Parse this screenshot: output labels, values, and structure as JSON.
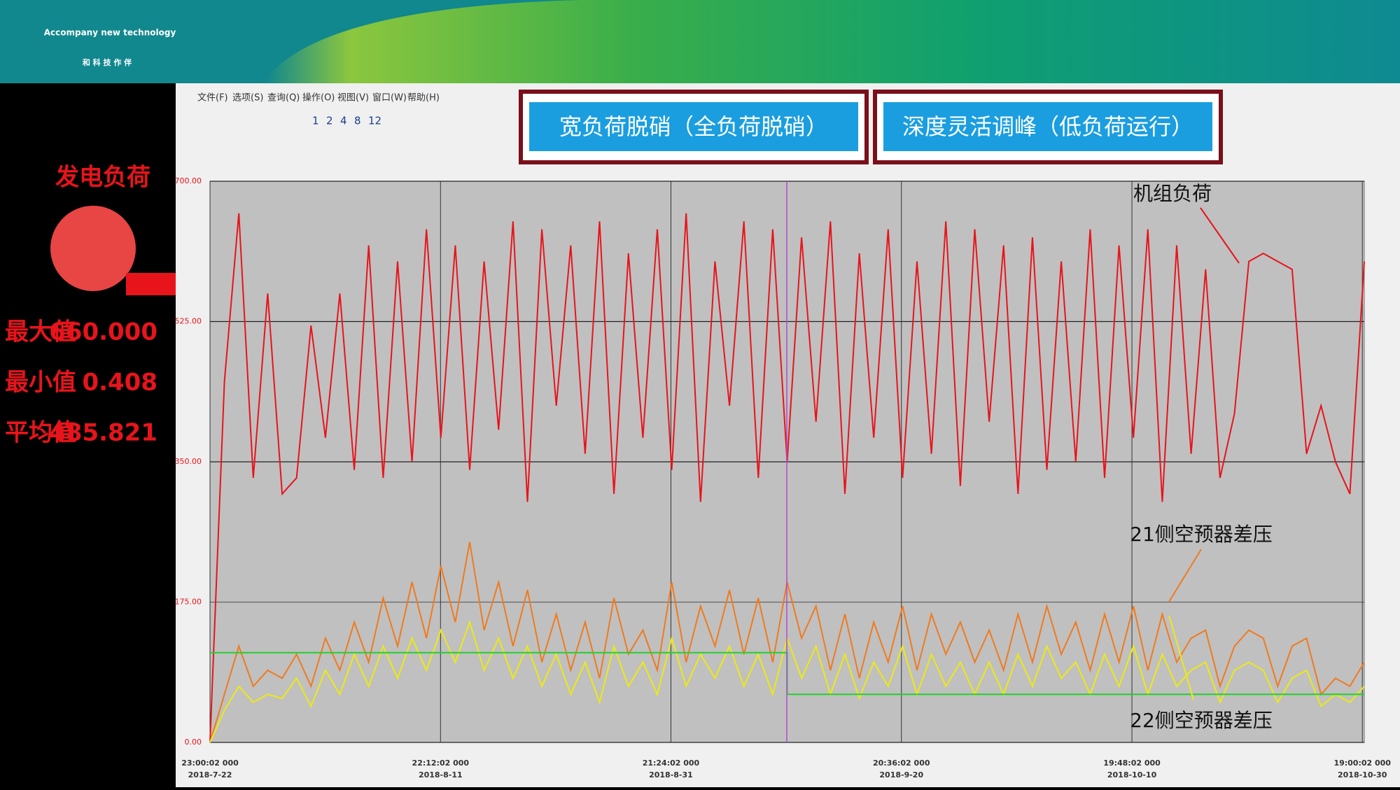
{
  "header": {
    "slogan": "Accompany new technology",
    "subtitle": "和 科 技 作 伴"
  },
  "sidebar": {
    "title": "发电负荷",
    "stats": [
      {
        "label": "最大值",
        "value": "660.000"
      },
      {
        "label": "最小值",
        "value": "0.408"
      },
      {
        "label": "平均值",
        "value": "485.821"
      }
    ]
  },
  "window": {
    "menu": [
      "文件(F)",
      "选项(S)",
      "查询(Q)",
      "操作(O)",
      "视图(V)",
      "窗口(W)",
      "帮助(H)"
    ],
    "toolbar": [
      "1",
      "2",
      "4",
      "8",
      "12"
    ],
    "buttons": [
      "宽负荷脱硝（全负荷脱硝）",
      "深度灵活调峰（低负荷运行）"
    ]
  },
  "chart_data": {
    "type": "line",
    "grid": true,
    "x": [
      0,
      1.25,
      2.5,
      3.75,
      5,
      6.25,
      7.5,
      8.75,
      10,
      11.25,
      12.5,
      13.75,
      15,
      16.25,
      17.5,
      18.75,
      20,
      21.25,
      22.5,
      23.75,
      25,
      26.25,
      27.5,
      28.75,
      30,
      31.25,
      32.5,
      33.75,
      35,
      36.25,
      37.5,
      38.75,
      40,
      41.25,
      42.5,
      43.75,
      45,
      46.25,
      47.5,
      48.75,
      50,
      51.25,
      52.5,
      53.75,
      55,
      56.25,
      57.5,
      58.75,
      60,
      61.25,
      62.5,
      63.75,
      65,
      66.25,
      67.5,
      68.75,
      70,
      71.25,
      72.5,
      73.75,
      75,
      76.25,
      77.5,
      78.75,
      80,
      81.25,
      82.5,
      83.75,
      85,
      86.25,
      87.5,
      88.75,
      90,
      91.25,
      92.5,
      93.75,
      95,
      96.25,
      97.5,
      98.75,
      100
    ],
    "xlim": [
      0,
      100
    ],
    "xticks": [
      {
        "value": 0,
        "label": [
          "23:00:02 000",
          "2018-7-22"
        ]
      },
      {
        "value": 19.97,
        "label": [
          "22:12:02 000",
          "2018-8-11"
        ]
      },
      {
        "value": 39.93,
        "label": [
          "21:24:02 000",
          "2018-8-31"
        ]
      },
      {
        "value": 59.9,
        "label": [
          "20:36:02 000",
          "2018-9-20"
        ]
      },
      {
        "value": 79.87,
        "label": [
          "19:48:02 000",
          "2018-10-10"
        ]
      },
      {
        "value": 99.83,
        "label": [
          "19:00:02 000",
          "2018-10-30"
        ]
      }
    ],
    "ylim": [
      0,
      700
    ],
    "yticks": [
      {
        "value": 0,
        "label": "0.00"
      },
      {
        "value": 175,
        "label": "175.00"
      },
      {
        "value": 350,
        "label": "350.00"
      },
      {
        "value": 525,
        "label": "525.00"
      },
      {
        "value": 700,
        "label": "700.00"
      }
    ],
    "series": [
      {
        "name": "机组负荷",
        "color": "#e8141b",
        "values": [
          0,
          450,
          660,
          330,
          560,
          310,
          330,
          520,
          380,
          560,
          340,
          620,
          330,
          600,
          350,
          640,
          380,
          620,
          340,
          600,
          390,
          650,
          300,
          640,
          420,
          620,
          360,
          650,
          310,
          610,
          380,
          640,
          340,
          660,
          300,
          600,
          420,
          650,
          330,
          640,
          350,
          630,
          400,
          650,
          310,
          610,
          380,
          640,
          330,
          600,
          360,
          650,
          320,
          640,
          400,
          620,
          310,
          630,
          340,
          600,
          350,
          640,
          330,
          620,
          380,
          640,
          300,
          620,
          360,
          590,
          330,
          410,
          600,
          610,
          600,
          590,
          360,
          420,
          350,
          310,
          600
        ]
      },
      {
        "name": "21侧空预器差压",
        "color": "#f07a1e",
        "values": [
          0,
          60,
          120,
          70,
          90,
          80,
          110,
          70,
          130,
          90,
          150,
          100,
          180,
          120,
          200,
          130,
          220,
          150,
          250,
          140,
          200,
          120,
          190,
          100,
          160,
          90,
          150,
          80,
          180,
          110,
          140,
          90,
          200,
          100,
          170,
          120,
          190,
          110,
          180,
          100,
          200,
          130,
          170,
          90,
          160,
          80,
          150,
          100,
          170,
          90,
          160,
          110,
          150,
          100,
          140,
          90,
          160,
          100,
          170,
          110,
          150,
          90,
          160,
          100,
          170,
          90,
          160,
          100,
          130,
          140,
          70,
          120,
          140,
          130,
          70,
          120,
          130,
          60,
          80,
          70,
          100
        ]
      },
      {
        "name": "22侧空预器差压",
        "color": "#ecea14",
        "values": [
          0,
          40,
          70,
          50,
          60,
          55,
          80,
          45,
          90,
          60,
          110,
          70,
          120,
          80,
          130,
          90,
          140,
          100,
          150,
          90,
          130,
          80,
          120,
          70,
          110,
          60,
          100,
          50,
          120,
          70,
          100,
          60,
          130,
          70,
          110,
          80,
          120,
          70,
          110,
          60,
          130,
          80,
          120,
          60,
          110,
          55,
          100,
          70,
          120,
          60,
          110,
          70,
          100,
          60,
          100,
          60,
          110,
          70,
          120,
          80,
          100,
          60,
          110,
          70,
          120,
          60,
          110,
          70,
          90,
          100,
          50,
          90,
          100,
          90,
          50,
          80,
          90,
          45,
          60,
          50,
          70
        ]
      },
      {
        "color": "#22d12a",
        "x": [
          0,
          50,
          50,
          100
        ],
        "values": [
          112,
          112,
          60,
          60
        ]
      }
    ]
  }
}
